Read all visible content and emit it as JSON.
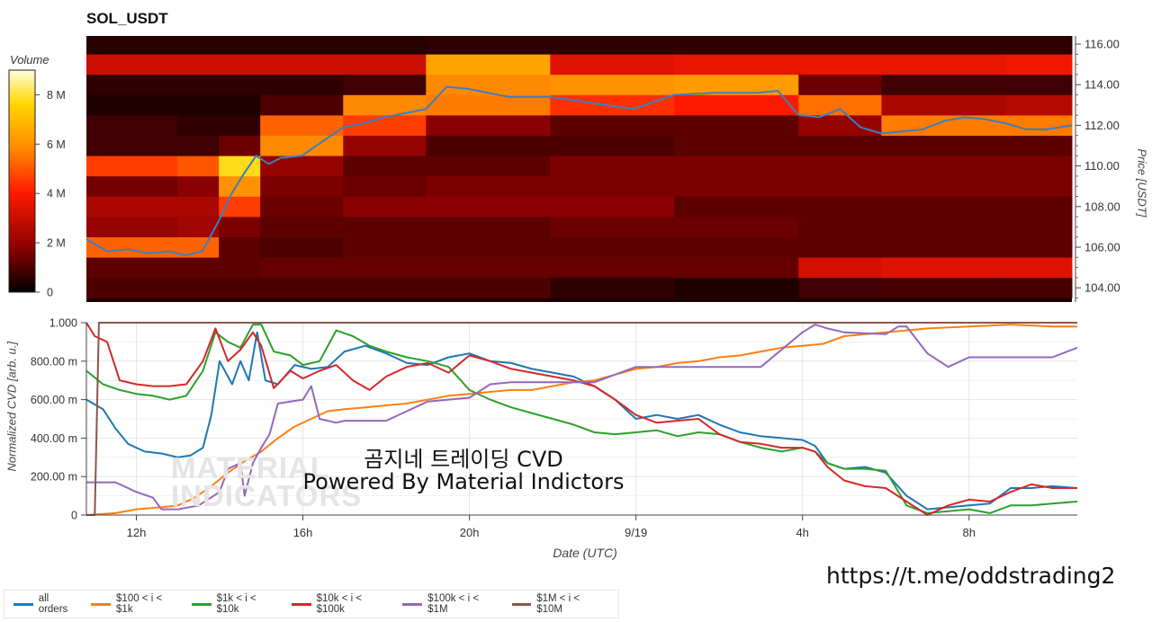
{
  "title": "SOL_USDT",
  "colorbar": {
    "label": "Volume",
    "ticks": [
      "8 M",
      "6 M",
      "4 M",
      "2 M",
      "0"
    ],
    "tick_values": [
      8000000,
      6000000,
      4000000,
      2000000,
      0
    ],
    "range": [
      0,
      9000000
    ],
    "colors": [
      "#000000",
      "#8b0000",
      "#ff1a00",
      "#ff8c00",
      "#ffd700",
      "#ffffe0"
    ]
  },
  "watermark": [
    "MATERIAL",
    "INDICATORS"
  ],
  "overlay": {
    "line1": "곰지네 트레이딩 CVD",
    "line2": "Powered By Material Indictors"
  },
  "link": "https://t.me/oddstrading2",
  "chart_data": [
    {
      "type": "heatmap",
      "title": "SOL_USDT",
      "ylabel": "Price [USDT]",
      "y_axis_side": "right",
      "y_ticks": [
        "116.00",
        "114.00",
        "112.00",
        "110.00",
        "108.00",
        "106.00",
        "104.00"
      ],
      "y_tick_values": [
        116,
        114,
        112,
        110,
        108,
        106,
        104
      ],
      "ylim": [
        103.3,
        116.4
      ],
      "xlim": [
        10.8,
        34.6
      ],
      "x_tick_values": [
        12,
        16,
        20,
        24,
        28,
        32
      ],
      "price_levels": [
        104,
        105,
        106,
        107,
        108,
        109,
        110,
        111,
        112,
        113,
        114,
        115,
        116
      ],
      "volume_columns": [
        {
          "x": 10.8,
          "volumes": [
            1.0,
            1.2,
            5.2,
            2.0,
            2.4,
            1.5,
            4.6,
            0.8,
            0.8,
            0.4,
            0.6,
            3.0,
            0.5
          ]
        },
        {
          "x": 13.0,
          "volumes": [
            1.0,
            1.2,
            5.2,
            2.2,
            2.4,
            1.8,
            5.0,
            0.8,
            0.6,
            0.4,
            0.6,
            3.0,
            0.5
          ]
        },
        {
          "x": 14.0,
          "volumes": [
            1.0,
            1.2,
            1.2,
            1.6,
            4.6,
            6.0,
            7.8,
            1.4,
            0.6,
            0.4,
            0.6,
            3.0,
            0.5
          ]
        },
        {
          "x": 15.0,
          "volumes": [
            1.0,
            1.3,
            1.0,
            1.2,
            1.4,
            1.6,
            2.0,
            5.8,
            5.2,
            1.0,
            0.6,
            3.0,
            0.5
          ]
        },
        {
          "x": 17.0,
          "volumes": [
            1.0,
            1.3,
            1.2,
            1.2,
            1.8,
            1.4,
            1.2,
            2.0,
            4.6,
            5.8,
            0.8,
            3.0,
            0.5
          ]
        },
        {
          "x": 19.0,
          "volumes": [
            1.0,
            1.3,
            1.2,
            1.2,
            1.8,
            1.6,
            1.2,
            1.0,
            1.8,
            5.6,
            5.8,
            6.4,
            0.6
          ]
        },
        {
          "x": 22.0,
          "volumes": [
            0.6,
            1.3,
            1.2,
            1.4,
            1.8,
            1.6,
            1.6,
            1.0,
            1.2,
            4.4,
            6.0,
            3.4,
            0.6
          ]
        },
        {
          "x": 25.0,
          "volumes": [
            0.4,
            1.3,
            1.2,
            1.4,
            1.2,
            1.6,
            1.6,
            1.2,
            1.2,
            4.0,
            6.2,
            3.6,
            0.6
          ]
        },
        {
          "x": 28.0,
          "volumes": [
            0.8,
            3.2,
            1.2,
            1.2,
            1.2,
            1.6,
            1.6,
            1.2,
            2.0,
            5.4,
            1.4,
            3.6,
            0.6
          ]
        },
        {
          "x": 30.0,
          "volumes": [
            0.9,
            3.4,
            1.2,
            1.2,
            1.2,
            1.6,
            1.6,
            1.2,
            5.6,
            2.4,
            0.8,
            3.6,
            0.6
          ]
        },
        {
          "x": 33.0,
          "volumes": [
            0.9,
            3.4,
            1.2,
            1.2,
            1.2,
            1.6,
            1.6,
            1.2,
            5.6,
            2.6,
            0.8,
            3.8,
            0.6
          ]
        }
      ],
      "series": [
        {
          "name": "Price",
          "color": "#3a7fc0",
          "x": [
            10.8,
            11.3,
            11.8,
            12.3,
            12.8,
            13.2,
            13.6,
            14.0,
            14.3,
            14.6,
            14.9,
            15.2,
            15.5,
            16.0,
            16.5,
            17.0,
            17.5,
            18.0,
            18.5,
            19.0,
            19.5,
            20.0,
            21.0,
            22.0,
            23.0,
            24.0,
            25.0,
            26.0,
            27.0,
            27.5,
            28.0,
            28.5,
            29.0,
            29.5,
            30.0,
            30.5,
            31.0,
            31.5,
            32.0,
            32.5,
            33.0,
            33.5,
            34.0,
            34.6
          ],
          "values": [
            106.4,
            105.8,
            105.9,
            105.7,
            105.8,
            105.6,
            105.8,
            107.3,
            108.6,
            109.6,
            110.5,
            110.1,
            110.4,
            110.5,
            111.2,
            111.9,
            112.1,
            112.4,
            112.6,
            112.8,
            113.9,
            113.8,
            113.4,
            113.4,
            113.1,
            112.8,
            113.5,
            113.6,
            113.6,
            113.7,
            112.5,
            112.4,
            112.8,
            111.9,
            111.6,
            111.7,
            111.8,
            112.2,
            112.4,
            112.3,
            112.1,
            111.8,
            111.8,
            112.0
          ]
        }
      ]
    },
    {
      "type": "line",
      "xlabel": "Date (UTC)",
      "ylabel": "Normalized CVD [arb. u.]",
      "x_tick_values": [
        12,
        16,
        20,
        24,
        28,
        32
      ],
      "x_ticks": [
        "12h",
        "16h",
        "20h",
        "9/19",
        "4h",
        "8h"
      ],
      "y_ticks": [
        "1.000",
        "800.00 m",
        "600.00 m",
        "400.00 m",
        "200.00 m",
        "0"
      ],
      "y_tick_values": [
        1,
        0.8,
        0.6,
        0.4,
        0.2,
        0
      ],
      "ylim": [
        0,
        1
      ],
      "xlim": [
        10.8,
        34.6
      ],
      "grid": true,
      "legend_position": "bottom-left",
      "series": [
        {
          "name": "all orders",
          "color": "#1f77b4",
          "x": [
            10.8,
            11.2,
            11.5,
            11.8,
            12.2,
            12.6,
            13.0,
            13.3,
            13.6,
            13.8,
            14.0,
            14.3,
            14.5,
            14.7,
            14.9,
            15.1,
            15.4,
            15.8,
            16.2,
            16.6,
            17.0,
            17.5,
            18.0,
            18.5,
            19.0,
            19.5,
            20.0,
            20.5,
            21.0,
            21.5,
            22.0,
            22.5,
            23.0,
            23.5,
            24.0,
            24.5,
            25.0,
            25.5,
            26.0,
            26.5,
            27.0,
            27.5,
            28.0,
            28.3,
            28.6,
            29.0,
            29.5,
            30.0,
            30.5,
            31.0,
            31.5,
            32.0,
            32.5,
            33.0,
            33.5,
            34.0,
            34.6
          ],
          "values": [
            0.6,
            0.55,
            0.45,
            0.37,
            0.33,
            0.32,
            0.3,
            0.31,
            0.35,
            0.52,
            0.8,
            0.68,
            0.8,
            0.7,
            0.95,
            0.7,
            0.68,
            0.78,
            0.76,
            0.77,
            0.85,
            0.88,
            0.84,
            0.79,
            0.78,
            0.82,
            0.84,
            0.8,
            0.79,
            0.76,
            0.74,
            0.72,
            0.67,
            0.6,
            0.5,
            0.52,
            0.5,
            0.52,
            0.47,
            0.43,
            0.41,
            0.4,
            0.39,
            0.36,
            0.27,
            0.24,
            0.25,
            0.22,
            0.1,
            0.03,
            0.04,
            0.05,
            0.06,
            0.14,
            0.14,
            0.15,
            0.14
          ]
        },
        {
          "name": "$100 < i < $1k",
          "color": "#ff7f0e",
          "x": [
            10.8,
            11.5,
            12.0,
            12.6,
            13.0,
            13.4,
            13.8,
            14.2,
            14.6,
            15.0,
            15.4,
            15.8,
            16.2,
            16.6,
            17.0,
            17.5,
            18.0,
            18.5,
            19.0,
            19.5,
            20.0,
            20.5,
            21.0,
            21.5,
            22.0,
            22.5,
            23.0,
            23.5,
            24.0,
            24.5,
            25.0,
            25.5,
            26.0,
            26.5,
            27.0,
            27.5,
            28.0,
            28.5,
            29.0,
            30.0,
            31.0,
            32.0,
            33.0,
            34.0,
            34.6
          ],
          "values": [
            0.0,
            0.01,
            0.03,
            0.04,
            0.05,
            0.09,
            0.15,
            0.22,
            0.28,
            0.33,
            0.4,
            0.46,
            0.5,
            0.54,
            0.55,
            0.56,
            0.57,
            0.58,
            0.6,
            0.62,
            0.63,
            0.64,
            0.65,
            0.65,
            0.67,
            0.69,
            0.7,
            0.73,
            0.76,
            0.77,
            0.79,
            0.8,
            0.82,
            0.83,
            0.85,
            0.87,
            0.88,
            0.89,
            0.93,
            0.95,
            0.97,
            0.98,
            0.99,
            0.98,
            0.98
          ]
        },
        {
          "name": "$1k < i < $10k",
          "color": "#2ca02c",
          "x": [
            10.8,
            11.2,
            11.6,
            12.0,
            12.4,
            12.8,
            13.2,
            13.6,
            13.9,
            14.2,
            14.5,
            14.8,
            15.0,
            15.3,
            15.7,
            16.0,
            16.4,
            16.8,
            17.2,
            17.6,
            18.0,
            18.5,
            19.0,
            19.5,
            20.0,
            20.5,
            21.0,
            21.5,
            22.0,
            22.5,
            23.0,
            23.5,
            24.0,
            24.5,
            25.0,
            25.5,
            26.0,
            26.5,
            27.0,
            27.5,
            28.0,
            28.3,
            28.6,
            29.0,
            29.5,
            30.0,
            30.5,
            31.0,
            31.5,
            32.0,
            32.5,
            33.0,
            33.5,
            34.0,
            34.6
          ],
          "values": [
            0.75,
            0.68,
            0.65,
            0.63,
            0.62,
            0.6,
            0.62,
            0.75,
            0.95,
            0.9,
            0.87,
            0.99,
            0.99,
            0.85,
            0.83,
            0.78,
            0.8,
            0.96,
            0.93,
            0.88,
            0.85,
            0.82,
            0.8,
            0.77,
            0.65,
            0.6,
            0.56,
            0.53,
            0.5,
            0.47,
            0.43,
            0.42,
            0.43,
            0.44,
            0.41,
            0.43,
            0.42,
            0.38,
            0.35,
            0.33,
            0.35,
            0.33,
            0.27,
            0.24,
            0.24,
            0.23,
            0.05,
            0.01,
            0.02,
            0.03,
            0.01,
            0.05,
            0.05,
            0.06,
            0.07
          ]
        },
        {
          "name": "$10k < i < $100k",
          "color": "#d62728",
          "x": [
            10.8,
            11.0,
            11.3,
            11.6,
            12.0,
            12.4,
            12.8,
            13.2,
            13.6,
            13.9,
            14.2,
            14.5,
            14.8,
            15.0,
            15.3,
            15.7,
            16.0,
            16.4,
            16.8,
            17.2,
            17.6,
            18.0,
            18.5,
            19.0,
            19.5,
            20.0,
            20.5,
            21.0,
            21.5,
            22.0,
            22.5,
            23.0,
            23.5,
            24.0,
            24.5,
            25.0,
            25.5,
            26.0,
            26.5,
            27.0,
            27.5,
            28.0,
            28.3,
            28.6,
            29.0,
            29.5,
            30.0,
            30.5,
            31.0,
            31.5,
            32.0,
            32.5,
            33.0,
            33.5,
            34.0,
            34.6
          ],
          "values": [
            1.0,
            0.93,
            0.9,
            0.7,
            0.68,
            0.67,
            0.67,
            0.68,
            0.8,
            0.97,
            0.8,
            0.86,
            0.95,
            0.88,
            0.66,
            0.75,
            0.71,
            0.75,
            0.78,
            0.7,
            0.65,
            0.72,
            0.77,
            0.79,
            0.74,
            0.83,
            0.8,
            0.76,
            0.74,
            0.72,
            0.7,
            0.67,
            0.6,
            0.52,
            0.48,
            0.49,
            0.5,
            0.42,
            0.38,
            0.37,
            0.35,
            0.35,
            0.33,
            0.25,
            0.18,
            0.15,
            0.14,
            0.07,
            0.0,
            0.05,
            0.08,
            0.07,
            0.12,
            0.16,
            0.14,
            0.14
          ]
        },
        {
          "name": "$100k < i < $1M",
          "color": "#9467bd",
          "x": [
            10.8,
            11.5,
            12.0,
            12.4,
            12.6,
            13.0,
            13.5,
            14.0,
            14.2,
            14.5,
            14.6,
            14.8,
            15.0,
            15.2,
            15.4,
            16.0,
            16.2,
            16.4,
            16.8,
            17.0,
            17.5,
            18.0,
            18.5,
            19.0,
            19.5,
            20.0,
            20.5,
            21.0,
            22.0,
            23.0,
            24.0,
            24.5,
            25.0,
            26.0,
            27.0,
            28.0,
            28.3,
            28.6,
            29.0,
            30.0,
            30.3,
            30.5,
            31.0,
            31.5,
            32.0,
            33.0,
            34.0,
            34.6
          ],
          "values": [
            0.17,
            0.17,
            0.12,
            0.09,
            0.03,
            0.03,
            0.05,
            0.12,
            0.24,
            0.27,
            0.1,
            0.27,
            0.35,
            0.42,
            0.58,
            0.6,
            0.67,
            0.5,
            0.48,
            0.49,
            0.49,
            0.49,
            0.54,
            0.59,
            0.6,
            0.61,
            0.68,
            0.69,
            0.69,
            0.69,
            0.77,
            0.77,
            0.77,
            0.77,
            0.77,
            0.95,
            0.99,
            0.97,
            0.95,
            0.94,
            0.98,
            0.98,
            0.84,
            0.77,
            0.82,
            0.82,
            0.82,
            0.87
          ]
        },
        {
          "name": "$1M < i < $10M",
          "color": "#8c564b",
          "x": [
            10.8,
            11.0,
            11.1,
            12.0,
            14.0,
            18.0,
            22.0,
            26.0,
            30.0,
            34.6
          ],
          "values": [
            0.0,
            0.0,
            1.0,
            1.0,
            1.0,
            1.0,
            1.0,
            1.0,
            1.0,
            1.0
          ]
        }
      ]
    }
  ]
}
